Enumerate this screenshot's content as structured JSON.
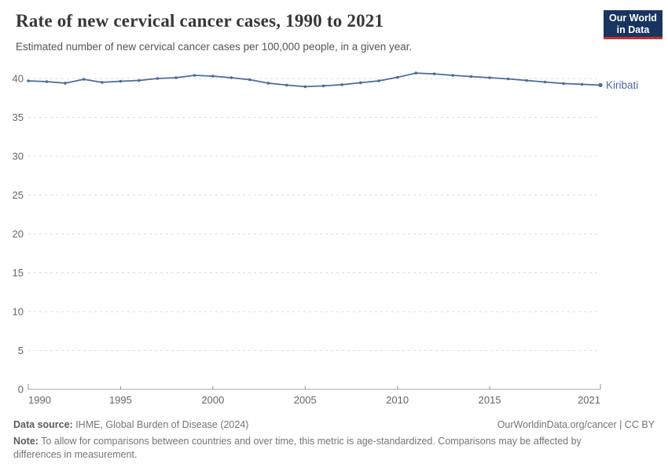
{
  "header": {
    "title": "Rate of new cervical cancer cases, 1990 to 2021",
    "subtitle": "Estimated number of new cervical cancer cases per 100,000 people, in a given year.",
    "logo": {
      "line1": "Our World",
      "line2": "in Data"
    }
  },
  "chart_data": {
    "type": "line",
    "title": "Rate of new cervical cancer cases, 1990 to 2021",
    "xlabel": "",
    "ylabel": "",
    "xlim": [
      1990,
      2021
    ],
    "ylim": [
      0,
      42
    ],
    "grid": "horizontal-dashed",
    "legend_position": "end-of-line-label",
    "x_ticks": [
      1990,
      1995,
      2000,
      2005,
      2010,
      2015,
      2021
    ],
    "y_ticks": [
      0,
      5,
      10,
      15,
      20,
      25,
      30,
      35,
      40
    ],
    "series": [
      {
        "name": "Kiribati",
        "color": "#4C6A9C",
        "x": [
          1990,
          1991,
          1992,
          1993,
          1994,
          1995,
          1996,
          1997,
          1998,
          1999,
          2000,
          2001,
          2002,
          2003,
          2004,
          2005,
          2006,
          2007,
          2008,
          2009,
          2010,
          2011,
          2012,
          2013,
          2014,
          2015,
          2016,
          2017,
          2018,
          2019,
          2020,
          2021
        ],
        "values": [
          39.7,
          39.6,
          39.4,
          39.9,
          39.5,
          39.65,
          39.75,
          40.0,
          40.1,
          40.4,
          40.3,
          40.1,
          39.85,
          39.4,
          39.15,
          38.95,
          39.05,
          39.2,
          39.45,
          39.7,
          40.15,
          40.7,
          40.6,
          40.4,
          40.25,
          40.1,
          39.95,
          39.75,
          39.55,
          39.35,
          39.25,
          39.15
        ]
      }
    ]
  },
  "footer": {
    "datasource_label": "Data source:",
    "datasource_rest": " IHME, Global Burden of Disease (2024)",
    "attribution": "OurWorldinData.org/cancer | CC BY",
    "note_label": "Note:",
    "note_rest": " To allow for comparisons between countries and over time, this metric is age-standardized. Comparisons may be affected by differences in measurement."
  },
  "colors": {
    "series_line": "#4C6A9C",
    "gridline": "#dcdcdc",
    "axis_line": "#a8a8a8",
    "tick_mark": "#8f8f8f",
    "tick_label": "#666666",
    "logo_bg": "#18355f",
    "logo_underline": "#cf2d2d",
    "title_text": "#373737",
    "subtitle_text": "#555555",
    "footer_text": "#757575"
  }
}
